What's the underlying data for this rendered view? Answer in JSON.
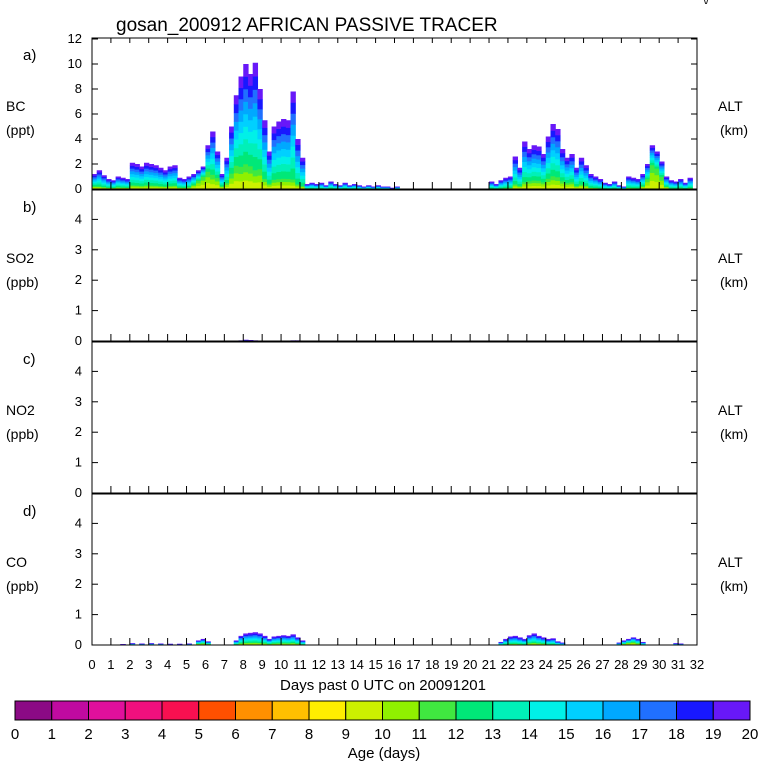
{
  "chart_data": {
    "type": "area",
    "title": "gosan_200912 AFRICAN PASSIVE TRACER",
    "corner_mark": "\\/",
    "xlabel": "Days past 0 UTC on 20091201",
    "xlim": [
      0,
      32
    ],
    "x_ticks": [
      "0",
      "1",
      "2",
      "3",
      "4",
      "5",
      "6",
      "7",
      "8",
      "9",
      "10",
      "11",
      "12",
      "13",
      "14",
      "15",
      "16",
      "17",
      "18",
      "19",
      "20",
      "21",
      "22",
      "23",
      "24",
      "25",
      "26",
      "27",
      "28",
      "29",
      "30",
      "31",
      "32"
    ],
    "colorbar": {
      "label": "Age (days)",
      "ticks": [
        "0",
        "1",
        "2",
        "3",
        "4",
        "5",
        "6",
        "7",
        "8",
        "9",
        "10",
        "11",
        "12",
        "13",
        "14",
        "15",
        "16",
        "17",
        "18",
        "19",
        "20"
      ],
      "colors": [
        "#8b0a85",
        "#c00aa0",
        "#e0109c",
        "#f0107e",
        "#f81050",
        "#ff5000",
        "#ff9000",
        "#ffc000",
        "#ffee00",
        "#ccf000",
        "#90f000",
        "#40e840",
        "#00e878",
        "#00f0b8",
        "#00f0e8",
        "#00d0ff",
        "#00a8ff",
        "#2070ff",
        "#1818ff",
        "#6818f8"
      ]
    },
    "panels": [
      {
        "id": "a",
        "panel_label": "a)",
        "ylabel_top": "BC",
        "ylabel_bottom": "(ppt)",
        "right_label_top": "ALT",
        "right_label_bottom": "(km)",
        "ylim": [
          0,
          12
        ],
        "y_ticks": [
          "0",
          "2",
          "4",
          "6",
          "8",
          "10",
          "12"
        ],
        "series": {
          "x": [
            0.0,
            0.25,
            0.5,
            0.75,
            1.0,
            1.25,
            1.5,
            1.75,
            2.0,
            2.25,
            2.5,
            2.75,
            3.0,
            3.25,
            3.5,
            3.75,
            4.0,
            4.25,
            4.5,
            4.75,
            5.0,
            5.25,
            5.5,
            5.75,
            6.0,
            6.25,
            6.5,
            6.75,
            7.0,
            7.25,
            7.5,
            7.75,
            8.0,
            8.25,
            8.5,
            8.75,
            9.0,
            9.25,
            9.5,
            9.75,
            10.0,
            10.25,
            10.5,
            10.75,
            11.0,
            11.25,
            11.5,
            11.75,
            12.0,
            12.25,
            12.5,
            12.75,
            13.0,
            13.25,
            13.5,
            13.75,
            14.0,
            14.25,
            14.5,
            14.75,
            15.0,
            15.25,
            15.5,
            15.75,
            16.0,
            16.25,
            16.5,
            16.75,
            17.0,
            17.25,
            17.5,
            17.75,
            18.0,
            18.25,
            18.5,
            18.75,
            19.0,
            19.25,
            19.5,
            19.75,
            20.0,
            20.25,
            20.5,
            20.75,
            21.0,
            21.25,
            21.5,
            21.75,
            22.0,
            22.25,
            22.5,
            22.75,
            23.0,
            23.25,
            23.5,
            23.75,
            24.0,
            24.25,
            24.5,
            24.75,
            25.0,
            25.25,
            25.5,
            25.75,
            26.0,
            26.25,
            26.5,
            26.75,
            27.0,
            27.25,
            27.5,
            27.75,
            28.0,
            28.25,
            28.5,
            28.75,
            29.0,
            29.25,
            29.5,
            29.75,
            30.0,
            30.25,
            30.5,
            30.75,
            31.0,
            31.25,
            31.5
          ],
          "total": [
            1.2,
            1.5,
            1.1,
            0.8,
            0.7,
            1.0,
            0.9,
            0.8,
            2.1,
            2.0,
            1.8,
            2.1,
            2.0,
            1.9,
            1.7,
            1.5,
            1.8,
            1.9,
            0.9,
            0.8,
            1.0,
            1.2,
            1.5,
            1.8,
            3.5,
            4.6,
            3.0,
            1.2,
            2.5,
            5.0,
            7.5,
            9.0,
            10.0,
            9.2,
            10.1,
            8.0,
            5.5,
            3.0,
            5.0,
            5.4,
            5.6,
            5.5,
            7.8,
            4.0,
            2.5,
            0.4,
            0.5,
            0.4,
            0.5,
            0.3,
            0.6,
            0.4,
            0.3,
            0.5,
            0.3,
            0.4,
            0.3,
            0.2,
            0.3,
            0.2,
            0.3,
            0.2,
            0.2,
            0.1,
            0.2,
            0.0,
            0.0,
            0.0,
            0.0,
            0.0,
            0.0,
            0.0,
            0.0,
            0.0,
            0.0,
            0.0,
            0.0,
            0.0,
            0.0,
            0.0,
            0.0,
            0.0,
            0.0,
            0.0,
            0.6,
            0.4,
            0.7,
            0.9,
            1.0,
            2.6,
            1.7,
            3.8,
            3.2,
            3.5,
            3.4,
            2.8,
            4.2,
            5.2,
            4.8,
            3.2,
            2.5,
            2.8,
            1.7,
            2.5,
            1.9,
            1.2,
            1.0,
            0.8,
            0.5,
            0.4,
            0.6,
            0.3,
            0.2,
            1.0,
            0.9,
            0.8,
            1.2,
            2.0,
            3.5,
            3.0,
            2.2,
            1.0,
            0.7,
            0.6,
            0.8,
            0.5,
            0.9,
            1.3,
            1.0
          ],
          "young_fraction": [
            0.2,
            0.15,
            0.15,
            0.15,
            0.15,
            0.15,
            0.15,
            0.15,
            0.15,
            0.15,
            0.15,
            0.15,
            0.15,
            0.15,
            0.15,
            0.15,
            0.15,
            0.15,
            0.15,
            0.15,
            0.15,
            0.3,
            0.45,
            0.55,
            0.4,
            0.25,
            0.3,
            0.2,
            0.2,
            0.25,
            0.25,
            0.2,
            0.2,
            0.2,
            0.15,
            0.2,
            0.15,
            0.15,
            0.15,
            0.15,
            0.15,
            0.15,
            0.1,
            0.1,
            0.1,
            0.1,
            0.1,
            0.1,
            0.1,
            0.1,
            0.1,
            0.1,
            0.1,
            0.1,
            0.1,
            0.1,
            0.1,
            0.1,
            0.1,
            0.1,
            0.1,
            0.1,
            0.1,
            0.1,
            0.1,
            0.1,
            0.1,
            0.1,
            0.1,
            0.1,
            0.1,
            0.1,
            0.1,
            0.1,
            0.1,
            0.1,
            0.1,
            0.1,
            0.1,
            0.1,
            0.1,
            0.1,
            0.1,
            0.1,
            0.1,
            0.1,
            0.1,
            0.1,
            0.1,
            0.15,
            0.15,
            0.15,
            0.2,
            0.2,
            0.2,
            0.2,
            0.2,
            0.2,
            0.2,
            0.2,
            0.2,
            0.2,
            0.15,
            0.15,
            0.15,
            0.1,
            0.1,
            0.1,
            0.1,
            0.1,
            0.1,
            0.1,
            0.1,
            0.1,
            0.1,
            0.1,
            0.2,
            0.4,
            0.55,
            0.55,
            0.45,
            0.2,
            0.1,
            0.1,
            0.1,
            0.1,
            0.1,
            0.1,
            0.1
          ]
        }
      },
      {
        "id": "b",
        "panel_label": "b)",
        "ylabel_top": "SO2",
        "ylabel_bottom": "(ppb)",
        "right_label_top": "ALT",
        "right_label_bottom": "(km)",
        "ylim": [
          0,
          5
        ],
        "y_ticks": [
          "0",
          "1",
          "2",
          "3",
          "4"
        ],
        "series": {
          "x": [
            7.75,
            8.0,
            8.25,
            8.5,
            10.5,
            10.75
          ],
          "total": [
            0.02,
            0.04,
            0.03,
            0.02,
            0.02,
            0.02
          ],
          "young_fraction": [
            0.2,
            0.2,
            0.2,
            0.2,
            0.2,
            0.2
          ]
        }
      },
      {
        "id": "c",
        "panel_label": "c)",
        "ylabel_top": "NO2",
        "ylabel_bottom": "(ppb)",
        "right_label_top": "ALT",
        "right_label_bottom": "(km)",
        "ylim": [
          0,
          5
        ],
        "y_ticks": [
          "0",
          "1",
          "2",
          "3",
          "4"
        ],
        "series": {
          "x": [],
          "total": [],
          "young_fraction": []
        }
      },
      {
        "id": "d",
        "panel_label": "d)",
        "ylabel_top": "CO",
        "ylabel_bottom": "(ppb)",
        "right_label_top": "ALT",
        "right_label_bottom": "(km)",
        "ylim": [
          0,
          5
        ],
        "y_ticks": [
          "0",
          "1",
          "2",
          "3",
          "4"
        ],
        "series": {
          "x": [
            1.5,
            2.0,
            2.5,
            3.0,
            3.5,
            4.0,
            4.5,
            5.0,
            5.5,
            5.75,
            6.0,
            7.5,
            7.75,
            8.0,
            8.25,
            8.5,
            8.75,
            9.0,
            9.25,
            9.5,
            9.75,
            10.0,
            10.25,
            10.5,
            10.75,
            11.0,
            21.5,
            21.75,
            22.0,
            22.25,
            22.5,
            22.75,
            23.0,
            23.25,
            23.5,
            23.75,
            24.0,
            24.25,
            24.5,
            24.75,
            27.75,
            28.0,
            28.25,
            28.5,
            28.75,
            29.0,
            30.75,
            31.0
          ],
          "total": [
            0.03,
            0.06,
            0.05,
            0.06,
            0.05,
            0.04,
            0.04,
            0.05,
            0.15,
            0.2,
            0.12,
            0.15,
            0.3,
            0.38,
            0.4,
            0.42,
            0.38,
            0.3,
            0.2,
            0.28,
            0.3,
            0.32,
            0.3,
            0.35,
            0.25,
            0.15,
            0.1,
            0.2,
            0.28,
            0.3,
            0.25,
            0.2,
            0.32,
            0.38,
            0.3,
            0.25,
            0.2,
            0.22,
            0.12,
            0.08,
            0.08,
            0.15,
            0.2,
            0.25,
            0.2,
            0.1,
            0.06,
            0.05
          ],
          "young_fraction": [
            0.15,
            0.15,
            0.15,
            0.15,
            0.15,
            0.15,
            0.15,
            0.15,
            0.3,
            0.3,
            0.3,
            0.2,
            0.2,
            0.2,
            0.2,
            0.2,
            0.2,
            0.2,
            0.2,
            0.2,
            0.2,
            0.2,
            0.2,
            0.2,
            0.2,
            0.2,
            0.15,
            0.15,
            0.15,
            0.15,
            0.15,
            0.15,
            0.2,
            0.2,
            0.2,
            0.2,
            0.15,
            0.15,
            0.15,
            0.15,
            0.15,
            0.3,
            0.4,
            0.4,
            0.3,
            0.15,
            0.15,
            0.15
          ]
        }
      }
    ]
  }
}
